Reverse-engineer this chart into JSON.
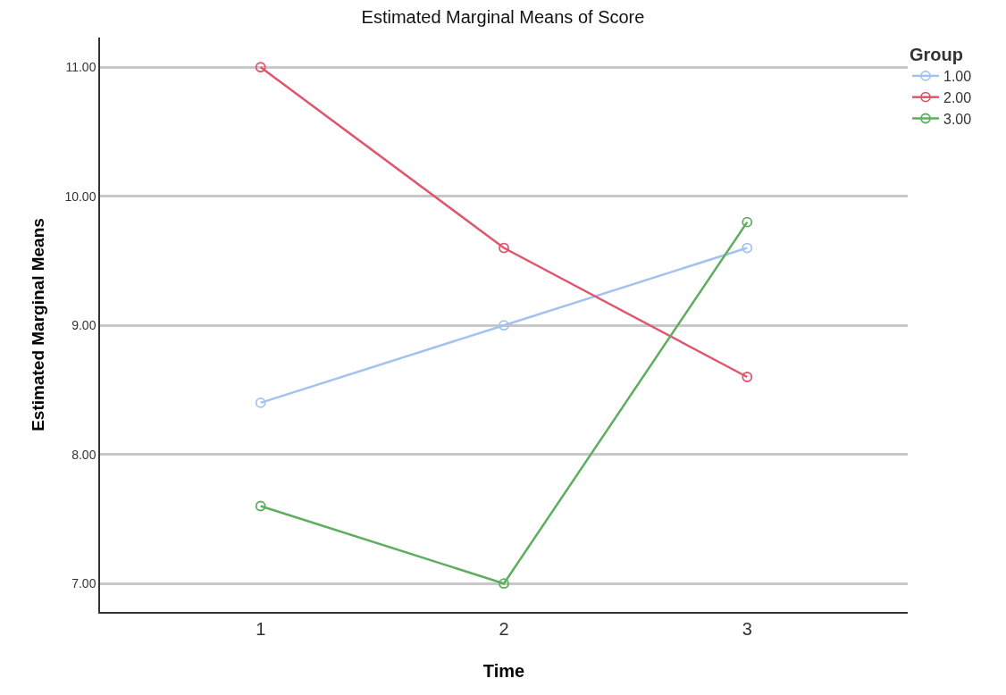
{
  "chart_data": {
    "type": "line",
    "title": "Estimated Marginal Means of Score",
    "xlabel": "Time",
    "ylabel": "Estimated Marginal Means",
    "legend_title": "Group",
    "categories": [
      "1",
      "2",
      "3"
    ],
    "series": [
      {
        "name": "1.00",
        "color": "#a3c2ee",
        "values": [
          8.4,
          9.0,
          9.6
        ]
      },
      {
        "name": "2.00",
        "color": "#e0566f",
        "values": [
          11.0,
          9.6,
          8.6
        ]
      },
      {
        "name": "3.00",
        "color": "#5fae5f",
        "values": [
          7.6,
          7.0,
          9.8
        ]
      }
    ],
    "ylim": [
      6.78,
      11.23
    ],
    "yticks": [
      {
        "value": 7,
        "label": "7.00"
      },
      {
        "value": 8,
        "label": "8.00"
      },
      {
        "value": 9,
        "label": "9.00"
      },
      {
        "value": 10,
        "label": "10.00"
      },
      {
        "value": 11,
        "label": "11.00"
      }
    ],
    "grid": "y",
    "legend": "top right",
    "marker": "circle",
    "line_style": "solid"
  }
}
